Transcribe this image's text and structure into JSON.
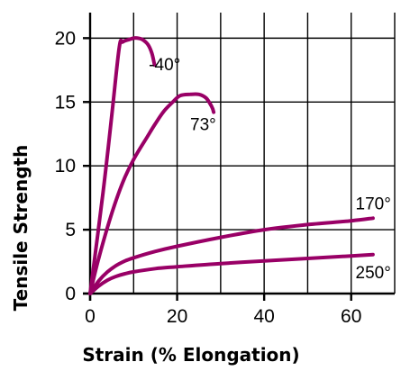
{
  "chart_data": {
    "type": "line",
    "title": "",
    "xlabel": "Strain (% Elongation)",
    "ylabel": "Tensile Strength",
    "xlim": [
      0,
      70
    ],
    "ylim": [
      0,
      22
    ],
    "x_ticks": [
      0,
      20,
      40,
      60
    ],
    "y_ticks": [
      0,
      5,
      10,
      15,
      20
    ],
    "grid": true,
    "line_color": "#990066",
    "series": [
      {
        "name": "-40°",
        "points": [
          [
            0,
            0
          ],
          [
            3,
            8
          ],
          [
            5,
            14
          ],
          [
            6.7,
            19.3
          ],
          [
            7.5,
            19.7
          ],
          [
            9,
            19.9
          ],
          [
            10,
            20.0
          ],
          [
            11,
            20.0
          ],
          [
            12,
            19.9
          ],
          [
            13.3,
            19.5
          ],
          [
            14.2,
            18.8
          ],
          [
            14.8,
            17.9
          ]
        ]
      },
      {
        "name": "73°",
        "points": [
          [
            0,
            0
          ],
          [
            2,
            2.8
          ],
          [
            5,
            6.3
          ],
          [
            7.5,
            8.7
          ],
          [
            10,
            10.5
          ],
          [
            13,
            12.2
          ],
          [
            15,
            13.3
          ],
          [
            17,
            14.3
          ],
          [
            19,
            15.0
          ],
          [
            20.7,
            15.5
          ],
          [
            23,
            15.6
          ],
          [
            25,
            15.6
          ],
          [
            26.7,
            15.3
          ],
          [
            28,
            14.6
          ],
          [
            28.4,
            14.2
          ]
        ]
      },
      {
        "name": "170°",
        "points": [
          [
            0,
            0
          ],
          [
            2,
            1.0
          ],
          [
            4,
            1.7
          ],
          [
            6,
            2.2
          ],
          [
            8,
            2.55
          ],
          [
            10,
            2.8
          ],
          [
            15,
            3.3
          ],
          [
            20,
            3.7
          ],
          [
            30,
            4.4
          ],
          [
            40,
            5.0
          ],
          [
            50,
            5.4
          ],
          [
            60,
            5.7
          ],
          [
            65,
            5.9
          ]
        ]
      },
      {
        "name": "250°",
        "points": [
          [
            0,
            0
          ],
          [
            2,
            0.6
          ],
          [
            4,
            1.05
          ],
          [
            6,
            1.35
          ],
          [
            8,
            1.55
          ],
          [
            10,
            1.7
          ],
          [
            15,
            1.95
          ],
          [
            20,
            2.1
          ],
          [
            30,
            2.35
          ],
          [
            40,
            2.55
          ],
          [
            50,
            2.75
          ],
          [
            60,
            2.95
          ],
          [
            65,
            3.05
          ]
        ]
      }
    ],
    "series_label_anchor": [
      [
        13.5,
        17.5
      ],
      [
        23,
        12.8
      ],
      [
        61,
        6.6
      ],
      [
        61,
        1.2
      ]
    ]
  }
}
